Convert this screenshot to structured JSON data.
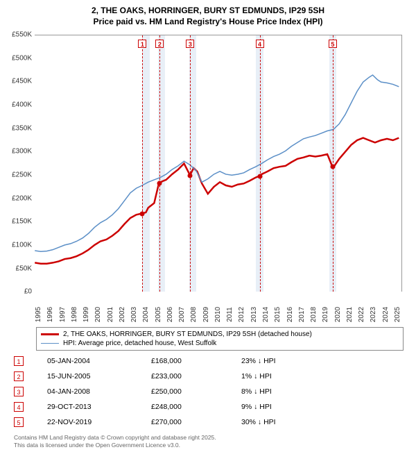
{
  "title_line1": "2, THE OAKS, HORRINGER, BURY ST EDMUNDS, IP29 5SH",
  "title_line2": "Price paid vs. HM Land Registry's House Price Index (HPI)",
  "chart": {
    "type": "line",
    "background_color": "#ffffff",
    "band_color": "#e8eff7",
    "marker_color": "#cc0000",
    "xlim": [
      1995,
      2025.7
    ],
    "ylim": [
      0,
      550
    ],
    "ytick_step": 50,
    "xtick_step": 1,
    "y_prefix": "£",
    "y_suffix": "K",
    "y_ticks": [
      0,
      50,
      100,
      150,
      200,
      250,
      300,
      350,
      400,
      450,
      500,
      550
    ],
    "x_ticks": [
      1995,
      1996,
      1997,
      1998,
      1999,
      2000,
      2001,
      2002,
      2003,
      2004,
      2005,
      2006,
      2007,
      2008,
      2009,
      2010,
      2011,
      2012,
      2013,
      2014,
      2015,
      2016,
      2017,
      2018,
      2019,
      2020,
      2021,
      2022,
      2023,
      2024,
      2025
    ],
    "series": [
      {
        "name": "property",
        "label": "2, THE OAKS, HORRINGER, BURY ST EDMUNDS, IP29 5SH (detached house)",
        "color": "#cc0000",
        "line_width": 2.5,
        "points": [
          [
            1995,
            62
          ],
          [
            1995.5,
            60
          ],
          [
            1996,
            60
          ],
          [
            1996.5,
            62
          ],
          [
            1997,
            65
          ],
          [
            1997.5,
            70
          ],
          [
            1998,
            72
          ],
          [
            1998.5,
            76
          ],
          [
            1999,
            82
          ],
          [
            1999.5,
            90
          ],
          [
            2000,
            100
          ],
          [
            2000.5,
            108
          ],
          [
            2001,
            112
          ],
          [
            2001.5,
            120
          ],
          [
            2002,
            130
          ],
          [
            2002.5,
            145
          ],
          [
            2003,
            158
          ],
          [
            2003.5,
            165
          ],
          [
            2004,
            168
          ],
          [
            2004.3,
            170
          ],
          [
            2004.5,
            180
          ],
          [
            2005,
            190
          ],
          [
            2005.4,
            233
          ],
          [
            2005.7,
            237
          ],
          [
            2006,
            240
          ],
          [
            2006.5,
            252
          ],
          [
            2007,
            262
          ],
          [
            2007.5,
            275
          ],
          [
            2008,
            250
          ],
          [
            2008.3,
            265
          ],
          [
            2008.6,
            258
          ],
          [
            2009,
            232
          ],
          [
            2009.5,
            210
          ],
          [
            2010,
            225
          ],
          [
            2010.5,
            235
          ],
          [
            2011,
            228
          ],
          [
            2011.5,
            225
          ],
          [
            2012,
            230
          ],
          [
            2012.5,
            232
          ],
          [
            2013,
            238
          ],
          [
            2013.5,
            245
          ],
          [
            2013.8,
            248
          ],
          [
            2014,
            252
          ],
          [
            2014.5,
            258
          ],
          [
            2015,
            265
          ],
          [
            2015.5,
            268
          ],
          [
            2016,
            270
          ],
          [
            2016.5,
            278
          ],
          [
            2017,
            285
          ],
          [
            2017.5,
            288
          ],
          [
            2018,
            292
          ],
          [
            2018.5,
            290
          ],
          [
            2019,
            292
          ],
          [
            2019.5,
            295
          ],
          [
            2019.9,
            270
          ],
          [
            2020.1,
            270
          ],
          [
            2020.5,
            285
          ],
          [
            2021,
            300
          ],
          [
            2021.5,
            315
          ],
          [
            2022,
            325
          ],
          [
            2022.5,
            330
          ],
          [
            2023,
            325
          ],
          [
            2023.5,
            320
          ],
          [
            2024,
            325
          ],
          [
            2024.5,
            328
          ],
          [
            2025,
            325
          ],
          [
            2025.5,
            330
          ]
        ]
      },
      {
        "name": "hpi",
        "label": "HPI: Average price, detached house, West Suffolk",
        "color": "#5b8fc7",
        "line_width": 1.5,
        "points": [
          [
            1995,
            88
          ],
          [
            1995.5,
            86
          ],
          [
            1996,
            87
          ],
          [
            1996.5,
            90
          ],
          [
            1997,
            95
          ],
          [
            1997.5,
            100
          ],
          [
            1998,
            103
          ],
          [
            1998.5,
            108
          ],
          [
            1999,
            115
          ],
          [
            1999.5,
            125
          ],
          [
            2000,
            138
          ],
          [
            2000.5,
            148
          ],
          [
            2001,
            155
          ],
          [
            2001.5,
            165
          ],
          [
            2002,
            178
          ],
          [
            2002.5,
            195
          ],
          [
            2003,
            212
          ],
          [
            2003.5,
            222
          ],
          [
            2004,
            228
          ],
          [
            2004.5,
            235
          ],
          [
            2005,
            240
          ],
          [
            2005.5,
            245
          ],
          [
            2006,
            252
          ],
          [
            2006.5,
            262
          ],
          [
            2007,
            270
          ],
          [
            2007.5,
            280
          ],
          [
            2008,
            272
          ],
          [
            2008.5,
            260
          ],
          [
            2009,
            235
          ],
          [
            2009.5,
            242
          ],
          [
            2010,
            252
          ],
          [
            2010.5,
            258
          ],
          [
            2011,
            252
          ],
          [
            2011.5,
            250
          ],
          [
            2012,
            252
          ],
          [
            2012.5,
            255
          ],
          [
            2013,
            262
          ],
          [
            2013.5,
            268
          ],
          [
            2014,
            275
          ],
          [
            2014.5,
            283
          ],
          [
            2015,
            290
          ],
          [
            2015.5,
            295
          ],
          [
            2016,
            302
          ],
          [
            2016.5,
            312
          ],
          [
            2017,
            320
          ],
          [
            2017.5,
            328
          ],
          [
            2018,
            332
          ],
          [
            2018.5,
            335
          ],
          [
            2019,
            340
          ],
          [
            2019.5,
            345
          ],
          [
            2020,
            348
          ],
          [
            2020.5,
            360
          ],
          [
            2021,
            380
          ],
          [
            2021.5,
            405
          ],
          [
            2022,
            430
          ],
          [
            2022.5,
            450
          ],
          [
            2023,
            460
          ],
          [
            2023.3,
            465
          ],
          [
            2023.7,
            455
          ],
          [
            2024,
            450
          ],
          [
            2024.5,
            448
          ],
          [
            2025,
            445
          ],
          [
            2025.5,
            440
          ]
        ]
      }
    ],
    "bands": [
      [
        2004.0,
        2004.6
      ],
      [
        2005.3,
        2005.9
      ],
      [
        2007.9,
        2008.5
      ],
      [
        2013.5,
        2014.1
      ],
      [
        2019.6,
        2020.2
      ]
    ],
    "markers": [
      {
        "idx": "1",
        "x": 2004.0,
        "y": 168
      },
      {
        "idx": "2",
        "x": 2005.45,
        "y": 233
      },
      {
        "idx": "3",
        "x": 2008.0,
        "y": 250
      },
      {
        "idx": "4",
        "x": 2013.8,
        "y": 248
      },
      {
        "idx": "5",
        "x": 2019.9,
        "y": 270
      }
    ]
  },
  "legend": {
    "row1_label": "2, THE OAKS, HORRINGER, BURY ST EDMUNDS, IP29 5SH (detached house)",
    "row1_color": "#cc0000",
    "row2_label": "HPI: Average price, detached house, West Suffolk",
    "row2_color": "#5b8fc7"
  },
  "transactions": [
    {
      "idx": "1",
      "date": "05-JAN-2004",
      "price": "£168,000",
      "diff": "23% ↓ HPI"
    },
    {
      "idx": "2",
      "date": "15-JUN-2005",
      "price": "£233,000",
      "diff": "1% ↓ HPI"
    },
    {
      "idx": "3",
      "date": "04-JAN-2008",
      "price": "£250,000",
      "diff": "8% ↓ HPI"
    },
    {
      "idx": "4",
      "date": "29-OCT-2013",
      "price": "£248,000",
      "diff": "9% ↓ HPI"
    },
    {
      "idx": "5",
      "date": "22-NOV-2019",
      "price": "£270,000",
      "diff": "30% ↓ HPI"
    }
  ],
  "footer_line1": "Contains HM Land Registry data © Crown copyright and database right 2025.",
  "footer_line2": "This data is licensed under the Open Government Licence v3.0."
}
